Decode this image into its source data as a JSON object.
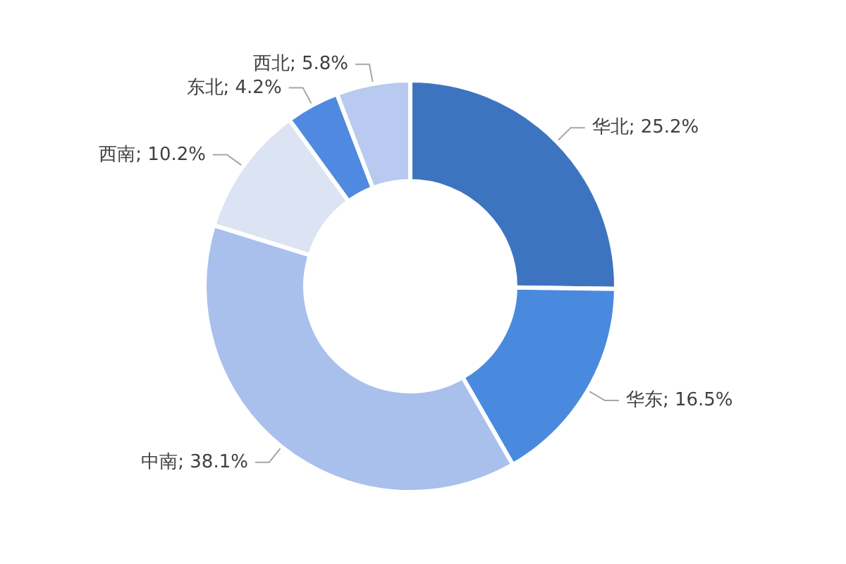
{
  "chart_data": {
    "type": "donut",
    "categories": [
      "华北",
      "华东",
      "中南",
      "西南",
      "东北",
      "西北"
    ],
    "values": [
      25.2,
      16.5,
      38.1,
      10.2,
      4.2,
      5.8
    ],
    "value_labels": [
      "25.2%",
      "16.5%",
      "38.1%",
      "10.2%",
      "4.2%",
      "5.8%"
    ],
    "colors": [
      "#3d74c0",
      "#4a8ade",
      "#a9c0ec",
      "#dce3f3",
      "#4f8ae0",
      "#b8caef"
    ],
    "legend": false
  }
}
